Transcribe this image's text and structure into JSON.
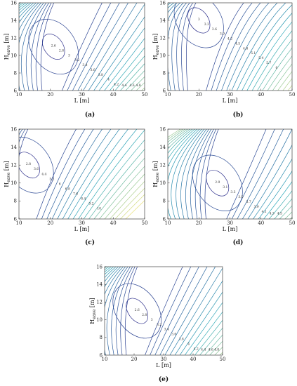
{
  "figure": {
    "panels_count": 5
  },
  "chart_data": [
    {
      "id": "a",
      "type": "contour",
      "caption": "(a)",
      "xlabel": "L [m]",
      "ylabel": "H_eave [m]",
      "xlim": [
        10,
        50
      ],
      "ylim": [
        6,
        16
      ],
      "xticks": [
        10,
        20,
        30,
        40,
        50
      ],
      "yticks": [
        6,
        8,
        10,
        12,
        14,
        16
      ],
      "minimum": {
        "x": 21,
        "y": 11,
        "value": 2.6
      },
      "contour_labels": [
        "2.6",
        "2.8",
        "3",
        "3.2",
        "3.4",
        "3.6",
        "3.8",
        "4",
        "4.2",
        "4.4",
        "4.6",
        "4.8"
      ],
      "colors": {
        "low": "#2b2d8a",
        "mid": "#2aa7b8",
        "high": "#e8e17a"
      }
    },
    {
      "id": "b",
      "type": "contour",
      "caption": "(b)",
      "xlabel": "L [m]",
      "ylabel": "H_eave [m]",
      "xlim": [
        10,
        50
      ],
      "ylim": [
        6,
        16
      ],
      "xticks": [
        10,
        20,
        30,
        40,
        50
      ],
      "yticks": [
        6,
        8,
        10,
        12,
        14,
        16
      ],
      "minimum": {
        "x": 20,
        "y": 14,
        "value": 3
      },
      "contour_labels": [
        "3",
        "3.3",
        "3.6",
        "3.9",
        "4.2",
        "4.5",
        "4.8",
        "5.1",
        "5.4",
        "5.7",
        "6"
      ],
      "colors": {
        "low": "#2b2d8a",
        "mid": "#2aa7b8",
        "high": "#e8e17a"
      }
    },
    {
      "id": "c",
      "type": "contour",
      "caption": "(c)",
      "xlabel": "L [m]",
      "ylabel": "H_eave [m]",
      "xlim": [
        10,
        50
      ],
      "ylim": [
        6,
        16
      ],
      "xticks": [
        10,
        20,
        30,
        40,
        50
      ],
      "yticks": [
        6,
        8,
        10,
        12,
        14,
        16
      ],
      "minimum": {
        "x": 13,
        "y": 12,
        "value": 2.8
      },
      "contour_labels": [
        "2.8",
        "3.6",
        "4.4",
        "5.2",
        "6",
        "6.8",
        "7.6",
        "8.4",
        "9.2",
        "10"
      ],
      "colors": {
        "low": "#2b2d8a",
        "mid": "#2aa7b8",
        "high": "#e8e17a"
      }
    },
    {
      "id": "d",
      "type": "contour",
      "caption": "(d)",
      "xlabel": "L [m]",
      "ylabel": "H_eave [m]",
      "xlim": [
        10,
        50
      ],
      "ylim": [
        6,
        16
      ],
      "xticks": [
        10,
        20,
        30,
        40,
        50
      ],
      "yticks": [
        6,
        8,
        10,
        12,
        14,
        16
      ],
      "minimum": {
        "x": 26,
        "y": 10,
        "value": 2.9
      },
      "contour_labels": [
        "2.9",
        "3.1",
        "3.3",
        "3.5",
        "3.7",
        "3.9",
        "4.1",
        "4.3",
        "4.5"
      ],
      "colors": {
        "low": "#2b2d8a",
        "mid": "#2aa7b8",
        "high": "#e8e17a"
      }
    },
    {
      "id": "e",
      "type": "contour",
      "caption": "(e)",
      "xlabel": "L [m]",
      "ylabel": "H_eave [m]",
      "xlim": [
        10,
        50
      ],
      "ylim": [
        6,
        16
      ],
      "xticks": [
        10,
        20,
        30,
        40,
        50
      ],
      "yticks": [
        6,
        8,
        10,
        12,
        14,
        16
      ],
      "minimum": {
        "x": 21,
        "y": 11,
        "value": 2.6
      },
      "contour_labels": [
        "2.6",
        "2.8",
        "3",
        "3.2",
        "3.4",
        "3.6",
        "3.8",
        "4",
        "4.2",
        "4.4",
        "4.6",
        "4.8"
      ],
      "colors": {
        "low": "#2b2d8a",
        "mid": "#2aa7b8",
        "high": "#e8e17a"
      }
    }
  ]
}
